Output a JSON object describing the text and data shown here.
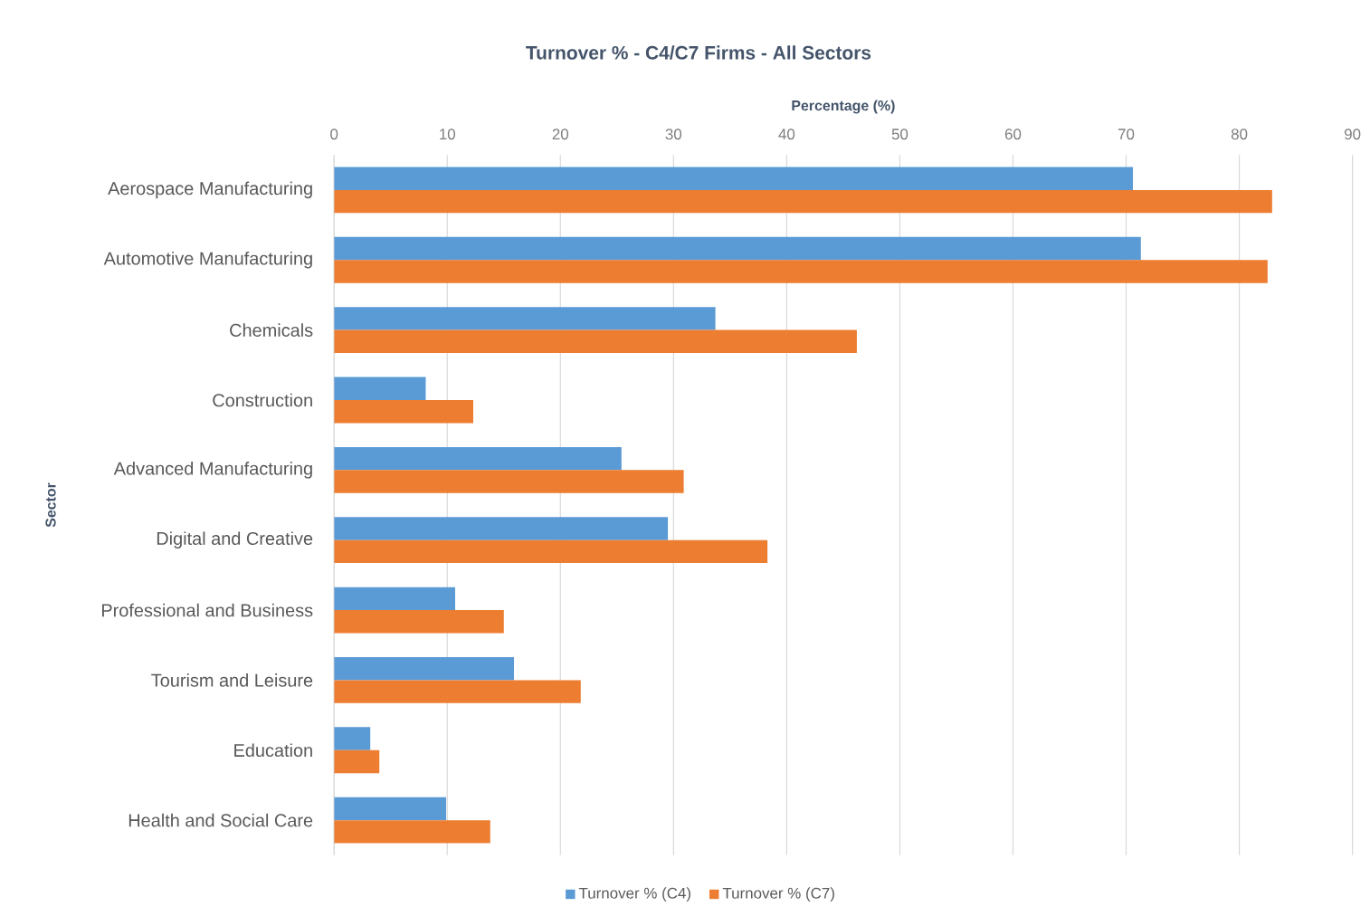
{
  "chart_data": {
    "type": "bar",
    "orientation": "horizontal",
    "title": "Turnover % - C4/C7 Firms - All Sectors",
    "xlabel": "Percentage (%)",
    "ylabel": "Sector",
    "categories": [
      "Aerospace Manufacturing",
      "Automotive Manufacturing",
      "Chemicals",
      "Construction",
      "Advanced Manufacturing",
      "Digital and Creative",
      "Professional and Business",
      "Tourism and Leisure",
      "Education",
      "Health and Social Care"
    ],
    "series": [
      {
        "name": "Turnover % (C4)",
        "color": "#5b9bd5",
        "values": [
          70.6,
          71.3,
          33.7,
          8.1,
          25.4,
          29.5,
          10.7,
          15.9,
          3.2,
          9.9
        ]
      },
      {
        "name": "Turnover % (C7)",
        "color": "#ed7d31",
        "values": [
          82.9,
          82.5,
          46.2,
          12.3,
          30.9,
          38.3,
          15.0,
          21.8,
          4.0,
          13.8
        ]
      }
    ],
    "xlim": [
      0,
      90
    ],
    "xticks": [
      0,
      10,
      20,
      30,
      40,
      50,
      60,
      70,
      80,
      90
    ],
    "grid": "x",
    "legend": "bottom"
  }
}
